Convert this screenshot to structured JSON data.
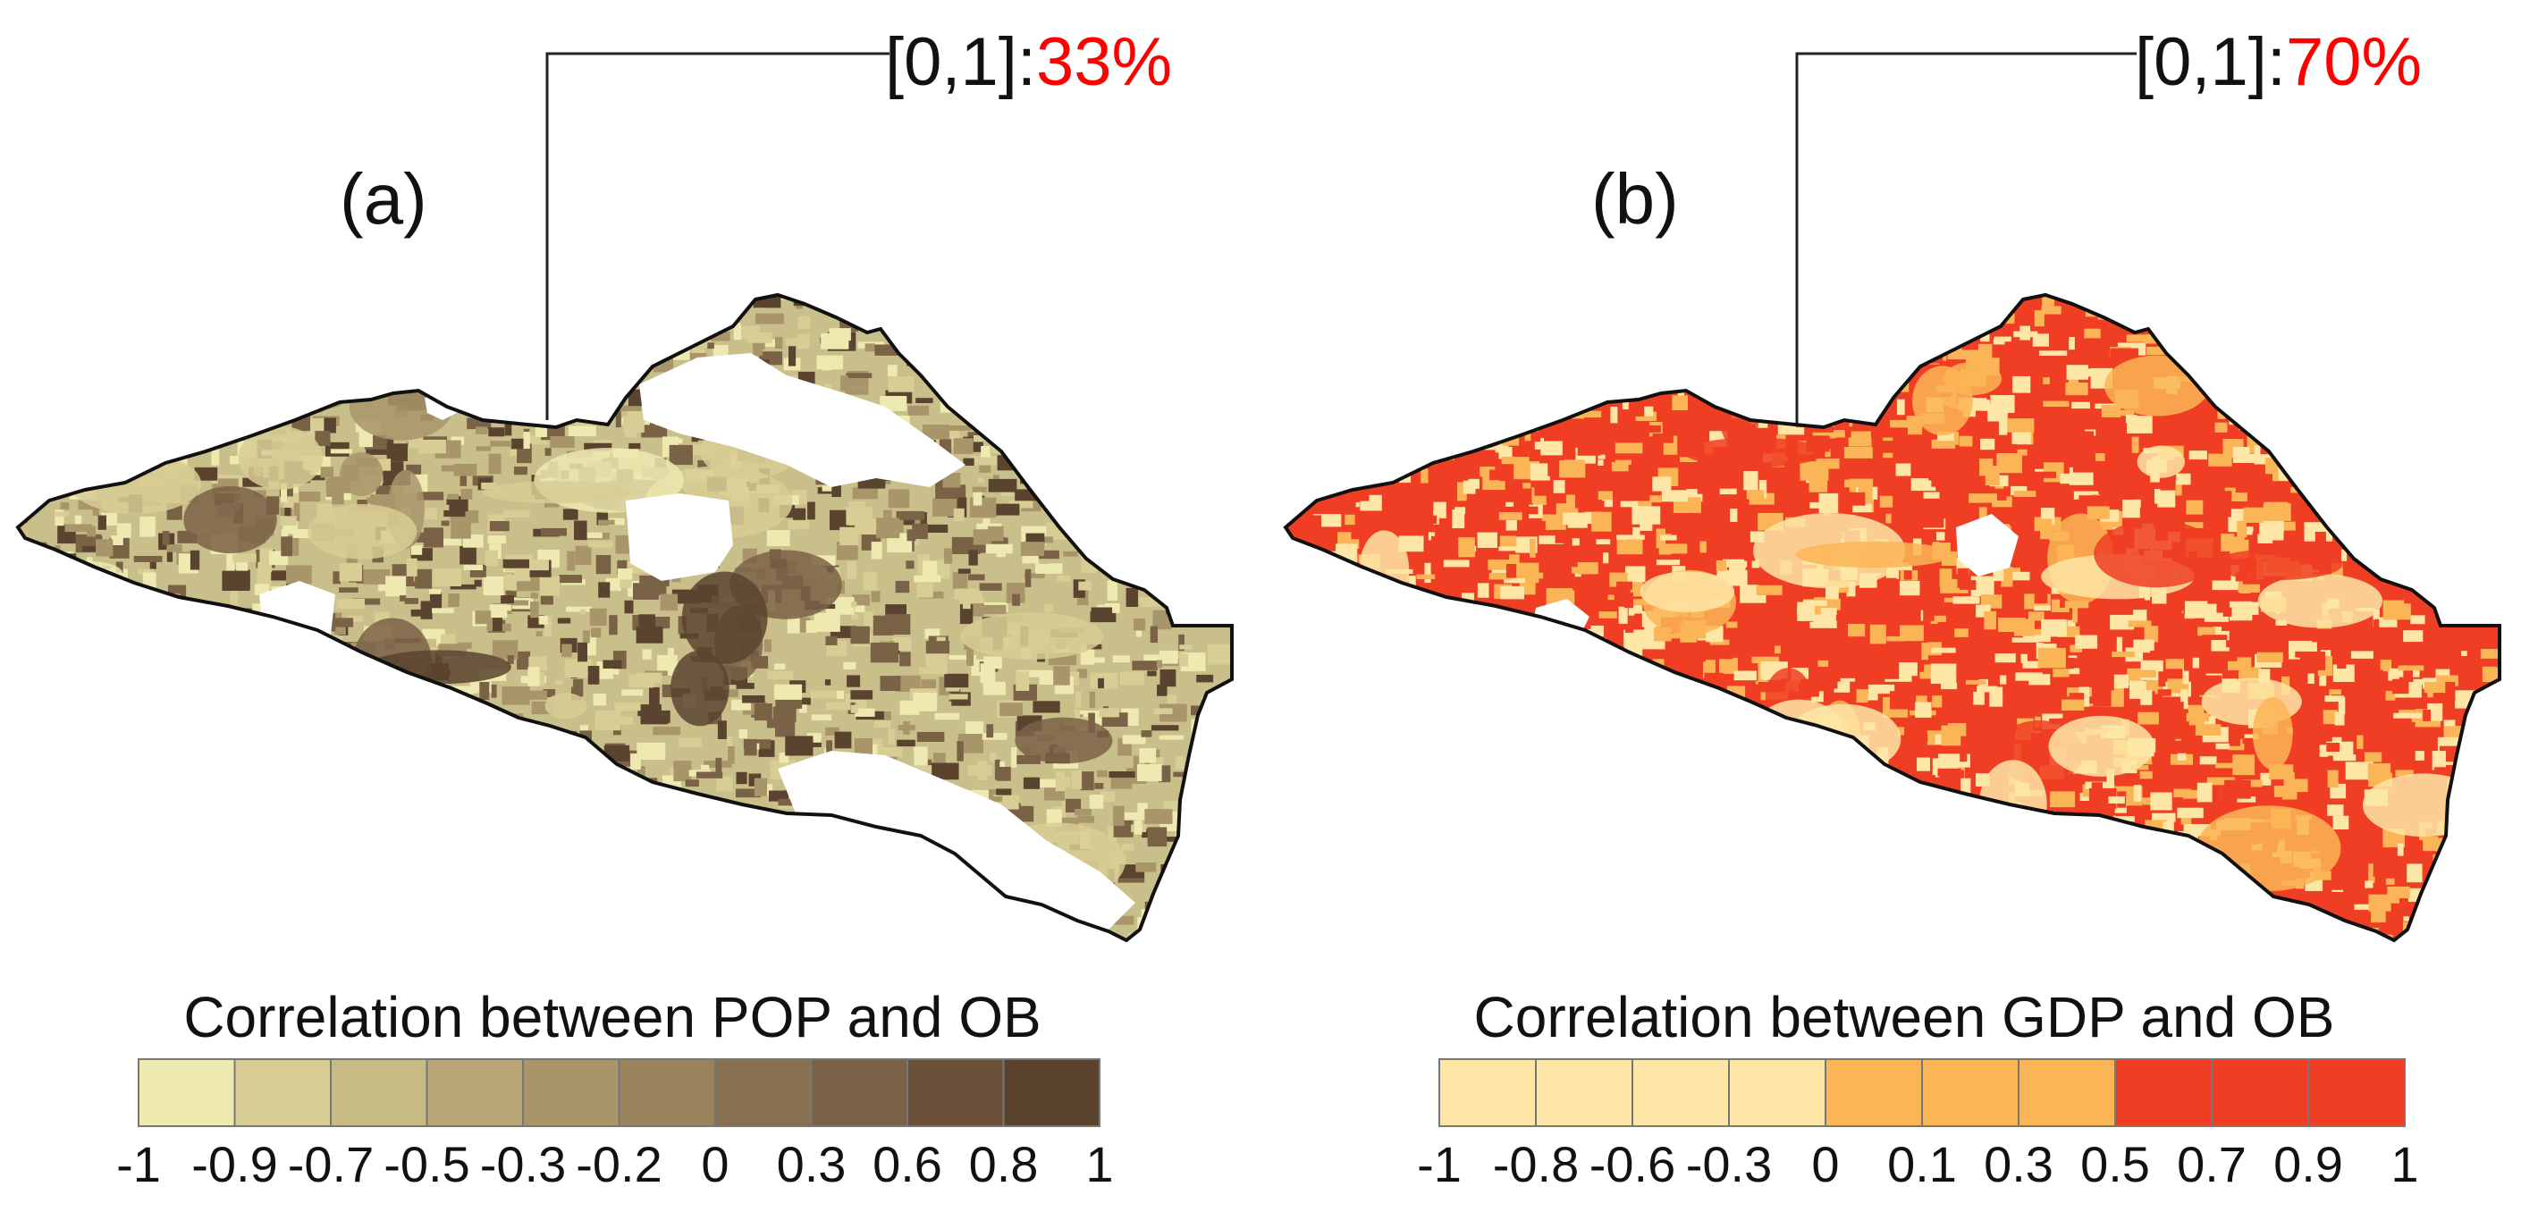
{
  "panels": [
    {
      "id": "a",
      "label": "(a)",
      "callout_range": "[0,1]:",
      "callout_share": "33%",
      "legend_title": "Correlation between POP and OB",
      "legend_ticks": [
        "-1",
        "-0.9",
        "-0.7",
        "-0.5",
        "-0.3",
        "-0.2",
        "0",
        "0.3",
        "0.6",
        "0.8",
        "1"
      ],
      "legend_colors": [
        "#ede9b0",
        "#d8cd94",
        "#c8ba85",
        "#b9a778",
        "#a8956a",
        "#98835d",
        "#876f51",
        "#7a6246",
        "#6b5139",
        "#5a4430"
      ],
      "map_base_color": "#c9bf8b",
      "map_pattern_colors": [
        "#ede9b0",
        "#d8cd94",
        "#a8956a",
        "#7a6246",
        "#5a4430"
      ]
    },
    {
      "id": "b",
      "label": "(b)",
      "callout_range": "[0,1]:",
      "callout_share": "70%",
      "legend_title": "Correlation between GDP and OB",
      "legend_ticks": [
        "-1",
        "-0.8",
        "-0.6",
        "-0.3",
        "0",
        "0.1",
        "0.3",
        "0.5",
        "0.7",
        "0.9",
        "1"
      ],
      "legend_colors": [
        "#fde6a6",
        "#fde6a6",
        "#fde6a6",
        "#fde6a6",
        "#fbb556",
        "#fbb556",
        "#fbb556",
        "#ef3e23",
        "#ef3e23",
        "#ef3e23"
      ],
      "map_base_color": "#ef3e23",
      "map_pattern_colors": [
        "#fde6a6",
        "#fbb556",
        "#ef3e23"
      ]
    }
  ],
  "callout_share_color": "#ff0000"
}
